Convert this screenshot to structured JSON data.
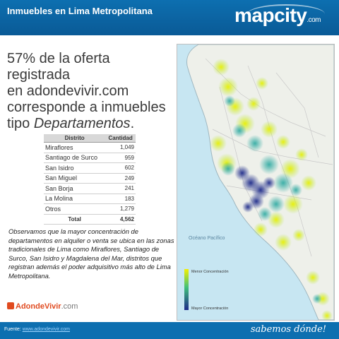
{
  "header": {
    "title": "Inmuebles en Lima Metropolitana",
    "logo": "mapcity",
    "logo_suffix": ".com"
  },
  "headline": {
    "line1": "57% de la oferta registrada",
    "line2": "en adondevivir.com",
    "line3": "corresponde a inmuebles",
    "line4_prefix": "tipo ",
    "line4_em": "Departamentos",
    "line4_suffix": "."
  },
  "table": {
    "headers": [
      "Distrito",
      "Cantidad"
    ],
    "rows": [
      [
        "Miraflores",
        "1,049"
      ],
      [
        "Santiago de Surco",
        "959"
      ],
      [
        "San Isidro",
        "602"
      ],
      [
        "San Miguel",
        "249"
      ],
      [
        "San Borja",
        "241"
      ],
      [
        "La Molina",
        "183"
      ],
      [
        "Otros",
        "1,279"
      ]
    ],
    "total_label": "Total",
    "total_value": "4,562"
  },
  "observation": "Observamos que la mayor concentración de departamentos en alquiler o venta se ubica en las zonas tradicionales de Lima como Miraflores, Santiago de Surco, San Isidro y Magdalena del Mar, distritos que registran además el poder adquisitivo más alto de Lima Metropolitana.",
  "brand": {
    "name": "AdondeVivir",
    "domain": ".com"
  },
  "map": {
    "ocean_label": "Océano Pacífico",
    "legend_low": "Menor Concentración",
    "legend_high": "Mayor Concentración",
    "colors": {
      "ocean": "#c7e6f2",
      "land": "#eef0ea",
      "low": "#f4f000",
      "mid": "#3fbf7a",
      "high": "#1d2a8a"
    }
  },
  "footer": {
    "source_label": "Fuente: ",
    "source_link": "www.adondevivir.com",
    "tagline": "sabemos dónde!"
  }
}
